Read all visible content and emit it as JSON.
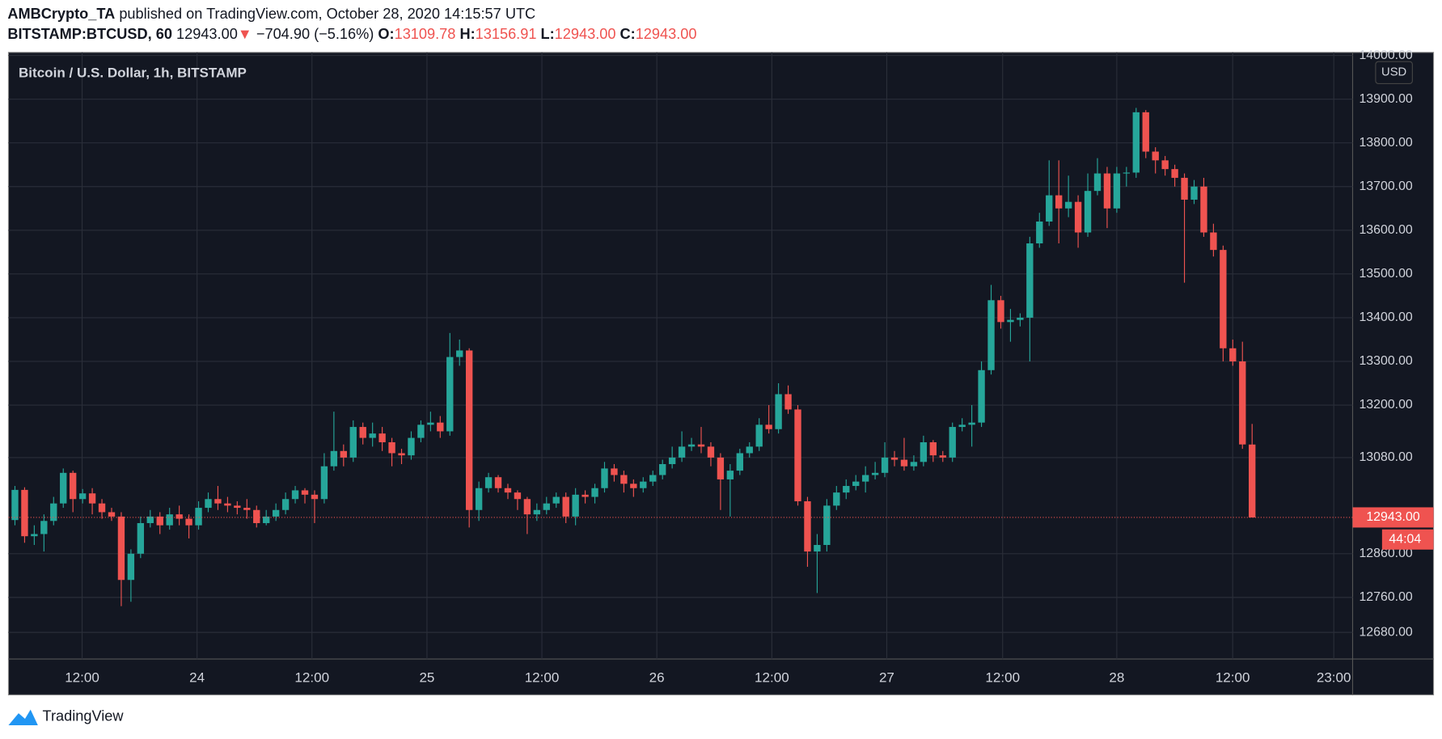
{
  "header": {
    "author": "AMBCrypto_TA",
    "published": "published on TradingView.com, October 28, 2020 14:15:57 UTC",
    "symbol": "BITSTAMP:BTCUSD, 60",
    "last": "12943.00",
    "arrow": "▼",
    "change": "−704.90 (−5.16%)",
    "o_label": "O:",
    "o_value": "13109.78",
    "h_label": "H:",
    "h_value": "13156.91",
    "l_label": "L:",
    "l_value": "12943.00",
    "c_label": "C:",
    "c_value": "12943.00"
  },
  "footer": {
    "brand": "TradingView"
  },
  "chart_data": {
    "type": "candlestick",
    "title": "Bitcoin / U.S. Dollar, 1h, BITSTAMP",
    "currency": "USD",
    "last_price_label": "12943.00",
    "countdown": "44:04",
    "up_color": "#26a69a",
    "down_color": "#ef5350",
    "grid": true,
    "xlim": [
      -0.67,
      138.4
    ],
    "xticks": [
      {
        "value": 6.95,
        "label": "12:00"
      },
      {
        "value": 18.84,
        "label": "24"
      },
      {
        "value": 30.73,
        "label": "12:00"
      },
      {
        "value": 42.63,
        "label": "25"
      },
      {
        "value": 54.52,
        "label": "12:00"
      },
      {
        "value": 66.41,
        "label": "26"
      },
      {
        "value": 78.31,
        "label": "12:00"
      },
      {
        "value": 90.2,
        "label": "27"
      },
      {
        "value": 102.19,
        "label": "12:00"
      },
      {
        "value": 114.0,
        "label": "28"
      },
      {
        "value": 125.99,
        "label": "12:00"
      },
      {
        "value": 136.45,
        "label": "23:00"
      }
    ],
    "ylim": [
      12619,
      14007
    ],
    "yticks": [
      {
        "value": 14000,
        "label": "14000.00"
      },
      {
        "value": 13900,
        "label": "13900.00"
      },
      {
        "value": 13800,
        "label": "13800.00"
      },
      {
        "value": 13700,
        "label": "13700.00"
      },
      {
        "value": 13600,
        "label": "13600.00"
      },
      {
        "value": 13500,
        "label": "13500.00"
      },
      {
        "value": 13400,
        "label": "13400.00"
      },
      {
        "value": 13300,
        "label": "13300.00"
      },
      {
        "value": 13200,
        "label": "13200.00"
      },
      {
        "value": 13080,
        "label": "13080.00"
      },
      {
        "value": 12860,
        "label": "12860.00"
      },
      {
        "value": 12760,
        "label": "12760.00"
      },
      {
        "value": 12680,
        "label": "12680.00"
      }
    ],
    "open": [
      12937,
      13006,
      12900,
      12905,
      12935,
      12975,
      13045,
      12985,
      12998,
      12975,
      12955,
      12945,
      12800,
      12860,
      12930,
      12945,
      12925,
      12950,
      12940,
      12925,
      12965,
      12985,
      12975,
      12970,
      12965,
      12960,
      12930,
      12945,
      12960,
      12985,
      13005,
      12995,
      12985,
      13060,
      13095,
      13080,
      13150,
      13125,
      13135,
      13115,
      13090,
      13085,
      13125,
      13155,
      13160,
      13140,
      13310,
      13325,
      12960,
      13010,
      13035,
      13010,
      13000,
      12985,
      12950,
      12960,
      12975,
      12990,
      12945,
      12995,
      12990,
      13010,
      13055,
      13040,
      13020,
      13010,
      13025,
      13040,
      13065,
      13080,
      13105,
      13110,
      13105,
      13080,
      13030,
      13050,
      13090,
      13105,
      13155,
      13145,
      13225,
      13190,
      12980,
      12865,
      12880,
      12970,
      13000,
      13015,
      13025,
      13040,
      13045,
      13080,
      13075,
      13060,
      13070,
      13115,
      13085,
      13080,
      13150,
      13155,
      13160,
      13280,
      13440,
      13390,
      13395,
      13400,
      13570,
      13620,
      13680,
      13650,
      13665,
      13595,
      13690,
      13730,
      13650,
      13730,
      13732,
      13870,
      13780,
      13760,
      13740,
      13720,
      13670,
      13700,
      13595,
      13555,
      13330,
      13300,
      13109.78
    ],
    "high": [
      13015,
      13012,
      12925,
      12950,
      12990,
      13055,
      13050,
      13008,
      13010,
      12985,
      12965,
      12955,
      12870,
      12945,
      12960,
      12955,
      12965,
      12970,
      12950,
      12980,
      13000,
      13015,
      12990,
      12980,
      12985,
      12970,
      12960,
      12975,
      13000,
      13015,
      13010,
      13005,
      13090,
      13185,
      13110,
      13165,
      13160,
      13160,
      13150,
      13125,
      13100,
      13140,
      13165,
      13185,
      13175,
      13365,
      13350,
      13330,
      13025,
      13045,
      13040,
      13020,
      13005,
      12990,
      12975,
      12990,
      13000,
      13000,
      13010,
      13005,
      13020,
      13070,
      13065,
      13050,
      13030,
      13035,
      13050,
      13075,
      13105,
      13140,
      13125,
      13150,
      13115,
      13090,
      13065,
      13100,
      13115,
      13170,
      13200,
      13250,
      13245,
      13200,
      12990,
      12905,
      12985,
      13015,
      13030,
      13040,
      13060,
      13070,
      13115,
      13095,
      13125,
      13085,
      13130,
      13120,
      13095,
      13160,
      13170,
      13200,
      13300,
      13475,
      13450,
      13420,
      13410,
      13585,
      13640,
      13760,
      13760,
      13725,
      13680,
      13730,
      13765,
      13745,
      13745,
      13745,
      13880,
      13875,
      13790,
      13770,
      13750,
      13730,
      13715,
      13720,
      13615,
      13565,
      13350,
      13345,
      13156.91
    ],
    "low": [
      12925,
      12885,
      12880,
      12865,
      12925,
      12965,
      12955,
      12975,
      12950,
      12940,
      12935,
      12740,
      12750,
      12850,
      12920,
      12905,
      12915,
      12925,
      12895,
      12915,
      12955,
      12960,
      12955,
      12950,
      12940,
      12920,
      12925,
      12935,
      12950,
      12975,
      12975,
      12930,
      12975,
      13050,
      13060,
      13070,
      13110,
      13105,
      13095,
      13060,
      13065,
      13075,
      13115,
      13140,
      13125,
      13130,
      13290,
      12920,
      12935,
      13000,
      13000,
      12985,
      12960,
      12905,
      12935,
      12950,
      12965,
      12930,
      12925,
      12975,
      12975,
      13000,
      13025,
      13000,
      12990,
      13000,
      13015,
      13030,
      13055,
      13070,
      13095,
      13090,
      13060,
      12960,
      12945,
      13040,
      13080,
      13095,
      13135,
      13135,
      13180,
      12970,
      12830,
      12770,
      12865,
      12960,
      12985,
      13005,
      13000,
      13030,
      13035,
      13060,
      13050,
      13050,
      13060,
      13070,
      13070,
      13070,
      13140,
      13105,
      13150,
      13270,
      13375,
      13345,
      13380,
      13300,
      13560,
      13610,
      13570,
      13630,
      13560,
      13585,
      13680,
      13605,
      13640,
      13700,
      13720,
      13765,
      13730,
      13725,
      13700,
      13480,
      13660,
      13585,
      13540,
      13300,
      13290,
      13100,
      12943
    ],
    "close": [
      13006,
      12900,
      12905,
      12935,
      12975,
      13045,
      12985,
      12998,
      12975,
      12955,
      12945,
      12800,
      12860,
      12930,
      12945,
      12925,
      12950,
      12940,
      12925,
      12965,
      12985,
      12975,
      12970,
      12965,
      12960,
      12930,
      12945,
      12960,
      12985,
      13005,
      12995,
      12985,
      13060,
      13095,
      13080,
      13150,
      13125,
      13135,
      13115,
      13090,
      13085,
      13125,
      13155,
      13160,
      13140,
      13310,
      13325,
      12960,
      13010,
      13035,
      13010,
      13000,
      12985,
      12950,
      12960,
      12975,
      12990,
      12945,
      12995,
      12990,
      13010,
      13055,
      13040,
      13020,
      13010,
      13025,
      13040,
      13065,
      13080,
      13105,
      13110,
      13105,
      13080,
      13030,
      13050,
      13090,
      13105,
      13155,
      13145,
      13225,
      13190,
      12980,
      12865,
      12880,
      12970,
      13000,
      13015,
      13025,
      13040,
      13045,
      13080,
      13075,
      13060,
      13070,
      13115,
      13085,
      13080,
      13150,
      13155,
      13160,
      13280,
      13440,
      13390,
      13395,
      13400,
      13570,
      13620,
      13680,
      13650,
      13665,
      13595,
      13690,
      13730,
      13650,
      13730,
      13732,
      13870,
      13780,
      13760,
      13740,
      13720,
      13670,
      13700,
      13595,
      13555,
      13330,
      13300,
      13110,
      12943
    ]
  }
}
